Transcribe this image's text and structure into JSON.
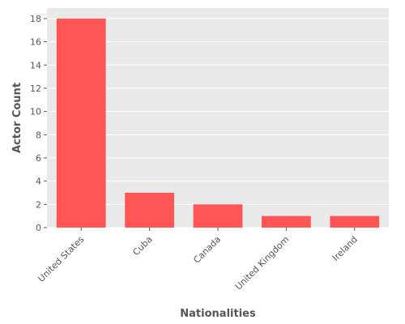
{
  "chart_data": {
    "type": "bar",
    "categories": [
      "United States",
      "Cuba",
      "Canada",
      "United Kingdom",
      "Ireland"
    ],
    "values": [
      18,
      3,
      2,
      1,
      1
    ],
    "xlabel": "Nationalities",
    "ylabel": "Actor Count",
    "ylim": [
      0,
      18.9
    ],
    "yticks": [
      0,
      2,
      4,
      6,
      8,
      10,
      12,
      14,
      16,
      18
    ],
    "grid": true,
    "bar_color": "#ff5555",
    "background_color": "#e9e9e9",
    "grid_color": "#ffffff"
  }
}
